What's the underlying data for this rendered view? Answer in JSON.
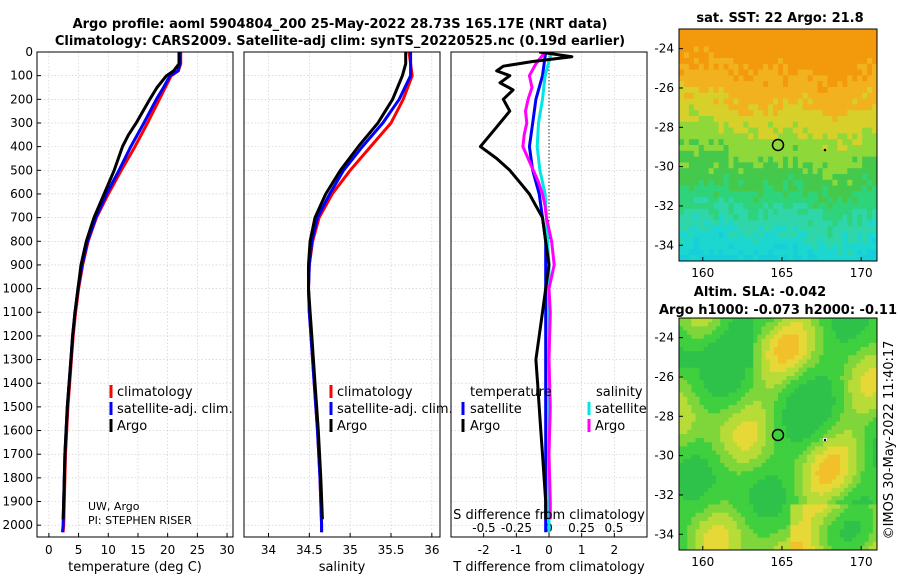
{
  "title": {
    "line1": "Argo profile: aoml 5904804_200 25-May-2022 28.73S 165.17E (NRT data)",
    "line2": "Climatology: CARS2009. Satellite-adj clim: synTS_20220525.nc (0.19d earlier)"
  },
  "colors": {
    "climatology": "#ff0000",
    "satellite": "#0000ff",
    "argo": "#000000",
    "sat_salinity": "#00e5e5",
    "argo_salinity": "#ff00ff"
  },
  "depth_ticks": [
    "0",
    "100",
    "200",
    "300",
    "400",
    "500",
    "600",
    "700",
    "800",
    "900",
    "1000",
    "1100",
    "1200",
    "1300",
    "1400",
    "1500",
    "1600",
    "1700",
    "1800",
    "1900",
    "2000"
  ],
  "chart_data": [
    {
      "type": "line",
      "name": "temperature",
      "xlabel": "temperature (deg C)",
      "ylabel": "depth",
      "xlim": [
        -2,
        31
      ],
      "ylim": [
        2050,
        0
      ],
      "xticks": [
        "0",
        "5",
        "10",
        "15",
        "20",
        "25",
        "30"
      ],
      "legend": [
        "climatology",
        "satellite-adj. clim.",
        "Argo"
      ],
      "annotation": [
        "UW, Argo",
        "PI: STEPHEN RISER"
      ],
      "series": [
        {
          "name": "climatology",
          "depth": [
            0,
            50,
            80,
            100,
            150,
            200,
            300,
            400,
            500,
            600,
            700,
            800,
            900,
            1000,
            1100,
            1200,
            1300,
            1400,
            1500,
            1600,
            1700,
            1800,
            1900,
            2000,
            2030
          ],
          "values": [
            22.2,
            22.2,
            21.8,
            20.6,
            19.6,
            18.6,
            16.6,
            14.5,
            12.2,
            10.0,
            8.0,
            6.6,
            5.7,
            5.0,
            4.5,
            4.1,
            3.8,
            3.5,
            3.2,
            3.0,
            2.8,
            2.7,
            2.6,
            2.5,
            2.4
          ]
        },
        {
          "name": "satellite-adj. clim.",
          "depth": [
            0,
            50,
            80,
            100,
            150,
            200,
            300,
            400,
            500,
            600,
            700,
            800,
            900,
            1000,
            1100,
            1200,
            1300,
            1400,
            1500,
            1600,
            1700,
            1800,
            1900,
            2000,
            2030
          ],
          "values": [
            22.1,
            22.1,
            21.7,
            20.4,
            19.3,
            18.1,
            16.0,
            13.8,
            11.8,
            9.7,
            7.9,
            6.5,
            5.6,
            4.9,
            4.4,
            4.0,
            3.7,
            3.4,
            3.1,
            2.9,
            2.7,
            2.6,
            2.5,
            2.4,
            2.3
          ]
        },
        {
          "name": "Argo",
          "depth": [
            0,
            50,
            80,
            100,
            150,
            200,
            300,
            350,
            400,
            500,
            600,
            700,
            800,
            900,
            1000,
            1100,
            1200,
            1300,
            1400,
            1500,
            1600,
            1700,
            1800,
            1900,
            1975
          ],
          "values": [
            21.9,
            21.9,
            21.0,
            19.8,
            18.2,
            17.0,
            14.7,
            13.4,
            12.4,
            11.0,
            9.3,
            7.6,
            6.3,
            5.4,
            4.9,
            4.4,
            4.0,
            3.7,
            3.4,
            3.1,
            2.9,
            2.7,
            2.6,
            2.5,
            2.4
          ]
        }
      ]
    },
    {
      "type": "line",
      "name": "salinity",
      "xlabel": "salinity",
      "xlim": [
        33.7,
        36.1
      ],
      "ylim": [
        2050,
        0
      ],
      "xticks": [
        "34",
        "34.5",
        "35",
        "35.5",
        "36"
      ],
      "legend": [
        "climatology",
        "satellite-adj. clim.",
        "Argo"
      ],
      "series": [
        {
          "name": "climatology",
          "depth": [
            0,
            50,
            100,
            200,
            300,
            400,
            500,
            600,
            700,
            800,
            900,
            1000,
            1100,
            1200,
            1400,
            1600,
            1800,
            2000,
            2030
          ],
          "values": [
            35.72,
            35.74,
            35.76,
            35.65,
            35.5,
            35.25,
            35.0,
            34.78,
            34.62,
            34.54,
            34.5,
            34.49,
            34.5,
            34.52,
            34.56,
            34.6,
            34.63,
            34.65,
            34.65
          ]
        },
        {
          "name": "satellite-adj. clim.",
          "depth": [
            0,
            50,
            100,
            200,
            300,
            400,
            500,
            600,
            700,
            800,
            900,
            1000,
            1100,
            1200,
            1400,
            1600,
            1800,
            2000,
            2030
          ],
          "values": [
            35.74,
            35.74,
            35.74,
            35.6,
            35.4,
            35.15,
            34.92,
            34.75,
            34.6,
            34.53,
            34.5,
            34.49,
            34.5,
            34.52,
            34.56,
            34.6,
            34.63,
            34.65,
            34.65
          ]
        },
        {
          "name": "Argo",
          "depth": [
            0,
            50,
            100,
            200,
            300,
            400,
            500,
            600,
            700,
            800,
            900,
            1000,
            1100,
            1200,
            1400,
            1600,
            1800,
            1975
          ],
          "values": [
            35.68,
            35.68,
            35.64,
            35.52,
            35.34,
            35.1,
            34.88,
            34.7,
            34.57,
            34.51,
            34.49,
            34.49,
            34.51,
            34.53,
            34.57,
            34.61,
            34.64,
            34.66
          ]
        }
      ]
    },
    {
      "type": "line",
      "name": "difference",
      "xlabel": "T difference from climatology",
      "xlabel_top": "S difference from climatology",
      "xlim": [
        -3,
        3
      ],
      "ylim": [
        2050,
        0
      ],
      "xticks": [
        "-2",
        "-1",
        "0",
        "1",
        "2"
      ],
      "xticks_s": [
        "-0.5",
        "-0.25",
        "0",
        "0.25",
        "0.5"
      ],
      "legend_t_title": "temperature",
      "legend_s_title": "salinity",
      "legend": [
        "satellite",
        "Argo",
        "satellite",
        "Argo"
      ],
      "series": [
        {
          "name": "T satellite",
          "depth": [
            0,
            100,
            200,
            300,
            400,
            500,
            600,
            700,
            800,
            900,
            1000,
            1200,
            1500,
            1800,
            2030
          ],
          "values": [
            -0.1,
            -0.2,
            -0.4,
            -0.5,
            -0.6,
            -0.5,
            -0.3,
            -0.2,
            -0.1,
            -0.1,
            -0.1,
            -0.1,
            -0.1,
            -0.1,
            -0.1
          ]
        },
        {
          "name": "T Argo",
          "depth": [
            0,
            20,
            40,
            60,
            80,
            100,
            130,
            160,
            200,
            250,
            300,
            350,
            400,
            450,
            500,
            550,
            600,
            650,
            700,
            800,
            900,
            1000,
            1100,
            1200,
            1300,
            1400,
            1500,
            1600,
            1700,
            1800,
            1900,
            1975
          ],
          "values": [
            -0.3,
            0.7,
            -0.5,
            -1.4,
            -1.6,
            -1.2,
            -1.5,
            -1.1,
            -1.4,
            -1.2,
            -1.5,
            -1.8,
            -2.1,
            -1.6,
            -1.2,
            -0.9,
            -0.6,
            -0.4,
            -0.2,
            -0.1,
            0.0,
            -0.1,
            -0.2,
            -0.3,
            -0.4,
            -0.35,
            -0.3,
            -0.25,
            -0.2,
            -0.15,
            -0.1,
            -0.1
          ]
        },
        {
          "name": "S satellite",
          "depth": [
            0,
            100,
            200,
            300,
            400,
            500,
            600,
            700,
            800,
            900,
            1000,
            1200,
            1500,
            1800,
            2030
          ],
          "values": [
            0.02,
            -0.03,
            -0.05,
            -0.08,
            -0.09,
            -0.07,
            -0.03,
            -0.02,
            -0.01,
            0.0,
            0.0,
            0.0,
            0.0,
            0.0,
            0.0
          ]
        },
        {
          "name": "S Argo",
          "depth": [
            0,
            50,
            100,
            150,
            200,
            250,
            300,
            350,
            400,
            450,
            500,
            550,
            600,
            650,
            700,
            750,
            800,
            850,
            900,
            950,
            1000,
            1100,
            1300,
            1500,
            1700,
            1900,
            1975
          ],
          "values": [
            -0.03,
            -0.1,
            -0.15,
            -0.13,
            -0.16,
            -0.18,
            -0.17,
            -0.19,
            -0.2,
            -0.16,
            -0.12,
            -0.08,
            -0.05,
            -0.03,
            -0.02,
            0.0,
            0.02,
            0.03,
            0.04,
            0.02,
            0.0,
            0.01,
            0.0,
            0.01,
            0.0,
            0.01,
            0.01
          ]
        }
      ]
    },
    {
      "type": "heatmap",
      "name": "sst-map",
      "title": "sat. SST: 22 Argo: 21.8",
      "xticks": [
        "160",
        "165",
        "170"
      ],
      "yticks": [
        "-24",
        "-26",
        "-28",
        "-30",
        "-32",
        "-34"
      ],
      "xlim": [
        158.5,
        171
      ],
      "ylim": [
        -34.8,
        -23
      ]
    },
    {
      "type": "heatmap",
      "name": "sla-map",
      "title": "Altim. SLA: -0.042",
      "subtitle": "Argo h1000: -0.073 h2000: -0.11",
      "xticks": [
        "160",
        "165",
        "170"
      ],
      "yticks": [
        "-24",
        "-26",
        "-28",
        "-30",
        "-32",
        "-34"
      ],
      "xlim": [
        158.5,
        171
      ],
      "ylim": [
        -34.8,
        -23
      ]
    }
  ],
  "side_label": "©IMOS 30-May-2022 11:40:17"
}
